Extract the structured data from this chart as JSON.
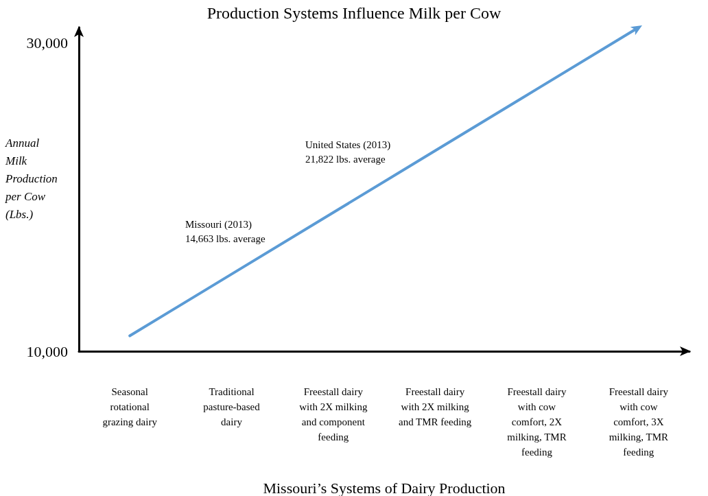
{
  "chart_data": {
    "type": "line",
    "title": "Production Systems Influence Milk per Cow",
    "xlabel": "Missouri’s Systems of Dairy Production",
    "ylabel": "Annual Milk Production per Cow (Lbs.)",
    "categories": [
      "Seasonal rotational grazing dairy",
      "Traditional pasture-based dairy",
      "Freestall dairy with 2X milking and component feeding",
      "Freestall dairy with 2X milking and TMR feeding",
      "Freestall dairy with cow comfort, 2X milking, TMR feeding",
      "Freestall dairy with cow comfort, 3X milking, TMR feeding"
    ],
    "series": [
      {
        "color": "#5b9bd5",
        "values": [
          11000,
          15000,
          19000,
          23000,
          27000,
          31000
        ]
      }
    ],
    "ylim": [
      10000,
      31000
    ],
    "yticks": [
      {
        "value": 10000,
        "label": "10,000"
      },
      {
        "value": 30000,
        "label": "30,000"
      }
    ],
    "annotations": [
      "United States (2013)\n21,822 lbs. average",
      "Missouri (2013)\n14,663 lbs. average"
    ]
  }
}
